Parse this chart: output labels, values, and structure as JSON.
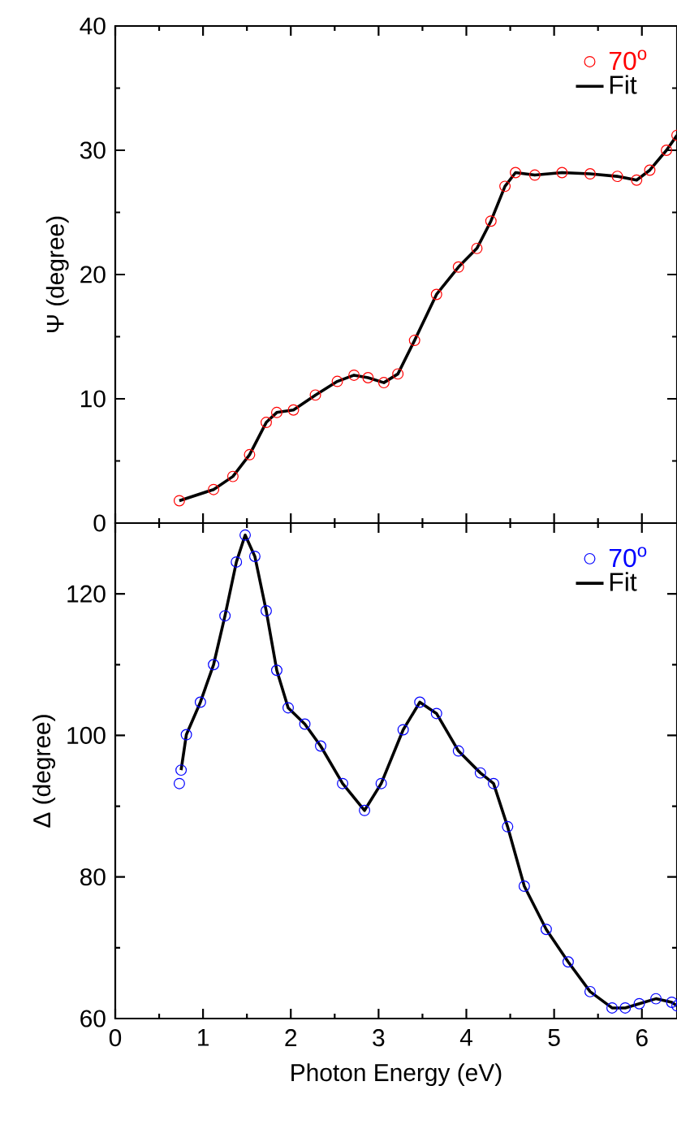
{
  "chart_data": [
    {
      "type": "scatter",
      "ylabel": "Ψ (degree)",
      "xlim": [
        0,
        6.4
      ],
      "xticks": [
        0,
        1,
        2,
        3,
        4,
        5,
        6
      ],
      "ylim": [
        0,
        40
      ],
      "yticks": [
        0,
        10,
        20,
        30,
        40
      ],
      "tick_labels": "y",
      "legend": "top right",
      "x": [
        0.73,
        1.12,
        1.34,
        1.53,
        1.72,
        1.84,
        2.03,
        2.28,
        2.53,
        2.72,
        2.88,
        3.06,
        3.22,
        3.41,
        3.66,
        3.91,
        4.12,
        4.28,
        4.44,
        4.56,
        4.78,
        5.09,
        5.41,
        5.72,
        5.94,
        6.09,
        6.28,
        6.4
      ],
      "series": [
        {
          "name": "70$^{o}$",
          "marker": "circle",
          "color": "#ff0000",
          "values": [
            1.8,
            2.7,
            3.75,
            5.5,
            8.1,
            8.9,
            9.1,
            10.3,
            11.4,
            11.9,
            11.7,
            11.3,
            12.0,
            14.7,
            18.4,
            20.6,
            22.1,
            24.3,
            27.1,
            28.2,
            28.0,
            28.2,
            28.1,
            27.9,
            27.6,
            28.4,
            30.0,
            31.2
          ]
        },
        {
          "name": "Fit",
          "type": "line",
          "marker": "none",
          "color": "#000000",
          "values": [
            1.8,
            2.7,
            3.75,
            5.5,
            8.1,
            8.9,
            9.1,
            10.3,
            11.4,
            11.9,
            11.7,
            11.3,
            12.0,
            14.7,
            18.4,
            20.6,
            22.1,
            24.3,
            27.1,
            28.2,
            28.0,
            28.2,
            28.1,
            27.9,
            27.6,
            28.4,
            30.0,
            31.2
          ]
        }
      ]
    },
    {
      "type": "scatter",
      "xlabel": "Photon Energy (eV)",
      "ylabel": "Δ (degree)",
      "xlim": [
        0,
        6.4
      ],
      "xticks": [
        0,
        1,
        2,
        3,
        4,
        5,
        6
      ],
      "ylim": [
        60,
        130
      ],
      "yticks": [
        60,
        80,
        100,
        120
      ],
      "legend": "top right",
      "x": [
        0.73,
        0.75,
        0.81,
        0.97,
        1.12,
        1.25,
        1.38,
        1.48,
        1.59,
        1.72,
        1.84,
        1.97,
        2.16,
        2.34,
        2.59,
        2.84,
        3.03,
        3.28,
        3.47,
        3.66,
        3.91,
        4.16,
        4.31,
        4.47,
        4.66,
        4.91,
        5.16,
        5.41,
        5.66,
        5.81,
        5.97,
        6.16,
        6.34,
        6.4
      ],
      "series": [
        {
          "name": "70$^{o}$",
          "marker": "circle",
          "color": "#0000ff",
          "values": [
            93.2,
            95.1,
            100.1,
            104.7,
            110.0,
            116.9,
            124.5,
            128.3,
            125.3,
            117.6,
            109.2,
            103.9,
            101.6,
            98.5,
            93.2,
            89.4,
            93.2,
            100.8,
            104.7,
            103.1,
            97.8,
            94.7,
            93.2,
            87.1,
            78.7,
            72.6,
            68.0,
            63.8,
            61.5,
            61.5,
            62.1,
            62.8,
            62.3,
            61.8
          ]
        },
        {
          "name": "Fit",
          "type": "line",
          "marker": "none",
          "color": "#000000",
          "values": [
            null,
            95.1,
            100.1,
            104.7,
            110.0,
            116.9,
            124.5,
            128.3,
            125.3,
            117.6,
            109.2,
            103.9,
            101.6,
            98.5,
            93.2,
            89.4,
            93.2,
            100.8,
            104.7,
            103.1,
            97.8,
            94.7,
            93.2,
            87.1,
            78.7,
            72.6,
            68.0,
            63.8,
            61.5,
            61.5,
            62.1,
            62.8,
            62.3,
            61.8
          ]
        }
      ]
    }
  ]
}
